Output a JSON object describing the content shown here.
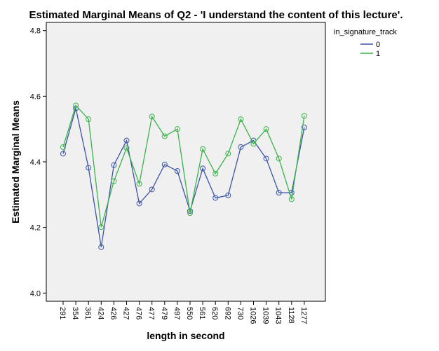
{
  "chart_data": {
    "type": "line",
    "title": "Estimated Marginal Means of Q2 - 'I understand the content of this lecture'.",
    "xlabel": "length in second",
    "ylabel": "Estimated Marginal Means",
    "ylim": [
      3.975,
      4.825
    ],
    "yticks": [
      "4.0",
      "4.2",
      "4.4",
      "4.6",
      "4.8"
    ],
    "categories": [
      "291",
      "354",
      "361",
      "424",
      "426",
      "427",
      "476",
      "477",
      "479",
      "497",
      "550",
      "561",
      "620",
      "692",
      "730",
      "1026",
      "1039",
      "1043",
      "1128",
      "1277"
    ],
    "legend": {
      "title": "in_signature_track",
      "position": "right"
    },
    "series": [
      {
        "name": "0",
        "color": "#3b54a8",
        "values": [
          4.425,
          4.563,
          4.382,
          4.14,
          4.39,
          4.465,
          4.273,
          4.316,
          4.392,
          4.372,
          4.25,
          4.38,
          4.29,
          4.298,
          4.445,
          4.465,
          4.41,
          4.306,
          4.306,
          4.505
        ]
      },
      {
        "name": "1",
        "color": "#3cb34a",
        "values": [
          4.445,
          4.572,
          4.53,
          4.201,
          4.341,
          4.442,
          4.333,
          4.538,
          4.478,
          4.5,
          4.244,
          4.439,
          4.364,
          4.425,
          4.53,
          4.455,
          4.5,
          4.41,
          4.286,
          4.54
        ]
      }
    ],
    "grid": false,
    "plot_background": "#f0f0f0"
  }
}
